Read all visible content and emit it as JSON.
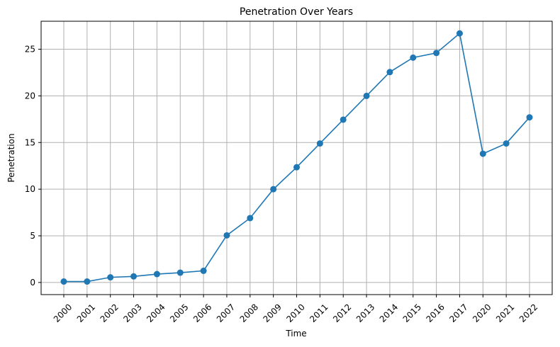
{
  "chart_data": {
    "type": "line",
    "title": "Penetration Over Years",
    "xlabel": "Time",
    "ylabel": "Penetration",
    "categories": [
      "2000",
      "2001",
      "2002",
      "2003",
      "2004",
      "2005",
      "2006",
      "2007",
      "2008",
      "2009",
      "2010",
      "2011",
      "2012",
      "2013",
      "2014",
      "2015",
      "2016",
      "2017",
      "2020",
      "2021",
      "2022"
    ],
    "series": [
      {
        "values": [
          0.1,
          0.1,
          0.55,
          0.65,
          0.9,
          1.05,
          1.25,
          5.05,
          6.9,
          10.0,
          12.35,
          14.9,
          17.45,
          20.0,
          22.55,
          24.1,
          24.6,
          26.7,
          13.8,
          14.9,
          17.7
        ],
        "color": "#1f77b4",
        "marker": "circle"
      }
    ],
    "ylim": [
      -1.3,
      28.0
    ],
    "yticks": [
      0,
      5,
      10,
      15,
      20,
      25
    ],
    "xtick_rotation": 45,
    "grid": true,
    "legend": "none"
  }
}
